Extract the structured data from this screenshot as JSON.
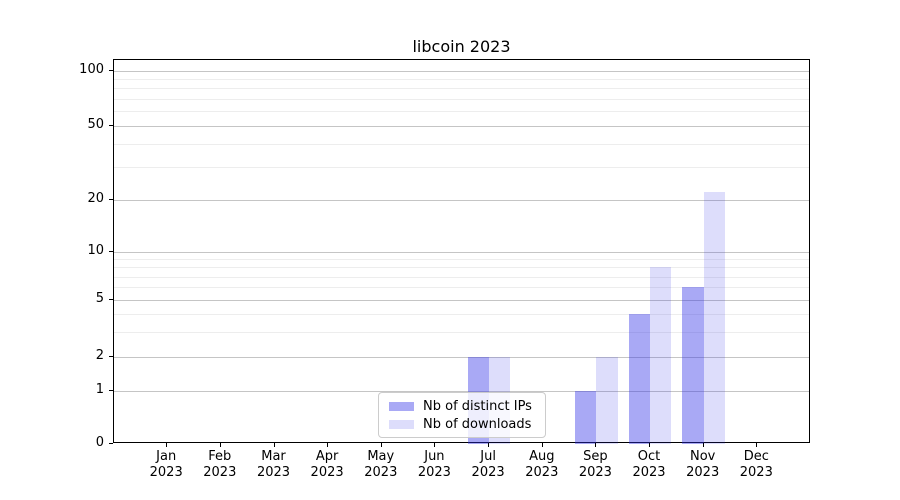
{
  "title": "libcoin 2023",
  "colors": {
    "bar_distinct_ips_rendered": "#a9a9f5",
    "bar_downloads_rendered": "#dbdbfa",
    "grid_major": "#c5c5c5",
    "grid_minor": "#ededed",
    "spine": "#000000",
    "legend_border": "#cccccc"
  },
  "chart_data": {
    "type": "bar",
    "title": "libcoin 2023",
    "xlabel": "",
    "ylabel": "",
    "y_scale": "symlog",
    "ylim": [
      0,
      100
    ],
    "grid": "major+minor horizontal",
    "legend_position": "lower center",
    "x_tick_year": "2023",
    "categories": [
      "Jan",
      "Feb",
      "Mar",
      "Apr",
      "May",
      "Jun",
      "Jul",
      "Aug",
      "Sep",
      "Oct",
      "Nov",
      "Dec"
    ],
    "y_major_ticks": [
      0,
      1,
      2,
      5,
      10,
      20,
      50,
      100
    ],
    "y_minor_ticks": [
      3,
      4,
      6,
      7,
      8,
      9,
      30,
      40,
      60,
      70,
      80,
      90
    ],
    "series": [
      {
        "name": "Nb of distinct IPs",
        "slug": "distinct-ips",
        "fill": "rgba(45,45,230,0.41)",
        "fill_hex": "#a9a9f5",
        "values": [
          0,
          0,
          0,
          0,
          0,
          0,
          2,
          0,
          1,
          4,
          6,
          0
        ]
      },
      {
        "name": "Nb of downloads",
        "slug": "downloads",
        "fill": "rgba(45,45,230,0.16)",
        "fill_hex": "#dbdbfa",
        "values": [
          0,
          0,
          0,
          0,
          0,
          0,
          2,
          0,
          2,
          8,
          22,
          0
        ]
      }
    ]
  },
  "legend": {
    "items": [
      "Nb of distinct IPs",
      "Nb of downloads"
    ]
  }
}
